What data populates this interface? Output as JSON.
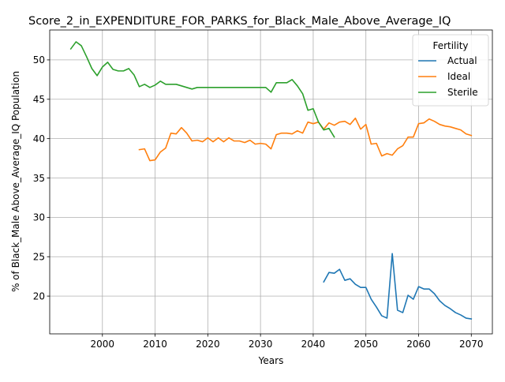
{
  "chart_data": {
    "type": "line",
    "title": "Score_2_in_EXPENDITURE_FOR_PARKS_for_Black_Male_Above_Average_IQ",
    "xlabel": "Years",
    "ylabel": "% of Black_Male Above_Average_IQ Population",
    "xlim": [
      1990,
      2074
    ],
    "ylim": [
      15.2,
      53.8
    ],
    "x_ticks": [
      2000,
      2010,
      2020,
      2030,
      2040,
      2050,
      2060,
      2070
    ],
    "y_ticks": [
      20,
      25,
      30,
      35,
      40,
      45,
      50
    ],
    "grid": true,
    "legend": {
      "title": "Fertility",
      "placement": "upper right"
    },
    "series": [
      {
        "name": "Actual",
        "color": "#1f77b4",
        "x": [
          2042,
          2043,
          2044,
          2045,
          2046,
          2047,
          2048,
          2049,
          2050,
          2051,
          2052,
          2053,
          2054,
          2055,
          2056,
          2057,
          2058,
          2059,
          2060,
          2061,
          2062,
          2063,
          2064,
          2065,
          2066,
          2067,
          2068,
          2069,
          2070
        ],
        "y": [
          21.8,
          23.0,
          22.9,
          23.4,
          22.0,
          22.2,
          21.5,
          21.1,
          21.1,
          19.6,
          18.6,
          17.5,
          17.2,
          25.4,
          18.2,
          17.9,
          20.1,
          19.6,
          21.2,
          20.9,
          20.9,
          20.3,
          19.4,
          18.8,
          18.4,
          17.9,
          17.6,
          17.2,
          17.1
        ]
      },
      {
        "name": "Ideal",
        "color": "#ff7f0e",
        "x": [
          2007,
          2008,
          2009,
          2010,
          2011,
          2012,
          2013,
          2014,
          2015,
          2016,
          2017,
          2018,
          2019,
          2020,
          2021,
          2022,
          2023,
          2024,
          2025,
          2026,
          2027,
          2028,
          2029,
          2030,
          2031,
          2032,
          2033,
          2034,
          2035,
          2036,
          2037,
          2038,
          2039,
          2040,
          2041,
          2042,
          2043,
          2044,
          2045,
          2046,
          2047,
          2048,
          2049,
          2050,
          2051,
          2052,
          2053,
          2054,
          2055,
          2056,
          2057,
          2058,
          2059,
          2060,
          2061,
          2062,
          2063,
          2064,
          2065,
          2066,
          2067,
          2068,
          2069,
          2070
        ],
        "y": [
          38.6,
          38.7,
          37.2,
          37.3,
          38.3,
          38.8,
          40.7,
          40.6,
          41.4,
          40.7,
          39.7,
          39.8,
          39.6,
          40.1,
          39.6,
          40.1,
          39.6,
          40.1,
          39.7,
          39.7,
          39.5,
          39.8,
          39.3,
          39.4,
          39.3,
          38.7,
          40.5,
          40.7,
          40.7,
          40.6,
          41.0,
          40.7,
          42.1,
          41.9,
          42.1,
          41.2,
          42.0,
          41.7,
          42.1,
          42.2,
          41.8,
          42.6,
          41.2,
          41.8,
          39.3,
          39.4,
          37.8,
          38.1,
          37.9,
          38.7,
          39.1,
          40.2,
          40.2,
          41.9,
          42.0,
          42.5,
          42.2,
          41.8,
          41.6,
          41.5,
          41.3,
          41.1,
          40.6,
          40.4
        ]
      },
      {
        "name": "Sterile",
        "color": "#2ca02c",
        "x": [
          1994,
          1995,
          1996,
          1997,
          1998,
          1999,
          2000,
          2001,
          2002,
          2003,
          2004,
          2005,
          2006,
          2007,
          2008,
          2009,
          2010,
          2011,
          2012,
          2013,
          2014,
          2015,
          2016,
          2017,
          2018,
          2019,
          2020,
          2021,
          2022,
          2023,
          2024,
          2025,
          2026,
          2027,
          2028,
          2029,
          2030,
          2031,
          2032,
          2033,
          2034,
          2035,
          2036,
          2037,
          2038,
          2039,
          2040,
          2041,
          2042,
          2043,
          2044
        ],
        "y": [
          51.4,
          52.3,
          51.8,
          50.4,
          48.9,
          48.0,
          49.1,
          49.7,
          48.8,
          48.6,
          48.6,
          48.9,
          48.1,
          46.6,
          46.9,
          46.5,
          46.8,
          47.3,
          46.9,
          46.9,
          46.9,
          46.7,
          46.5,
          46.3,
          46.5,
          46.5,
          46.5,
          46.5,
          46.5,
          46.5,
          46.5,
          46.5,
          46.5,
          46.5,
          46.5,
          46.5,
          46.5,
          46.5,
          45.9,
          47.1,
          47.1,
          47.1,
          47.5,
          46.7,
          45.7,
          43.6,
          43.8,
          42.1,
          41.1,
          41.3,
          40.2
        ]
      }
    ]
  }
}
